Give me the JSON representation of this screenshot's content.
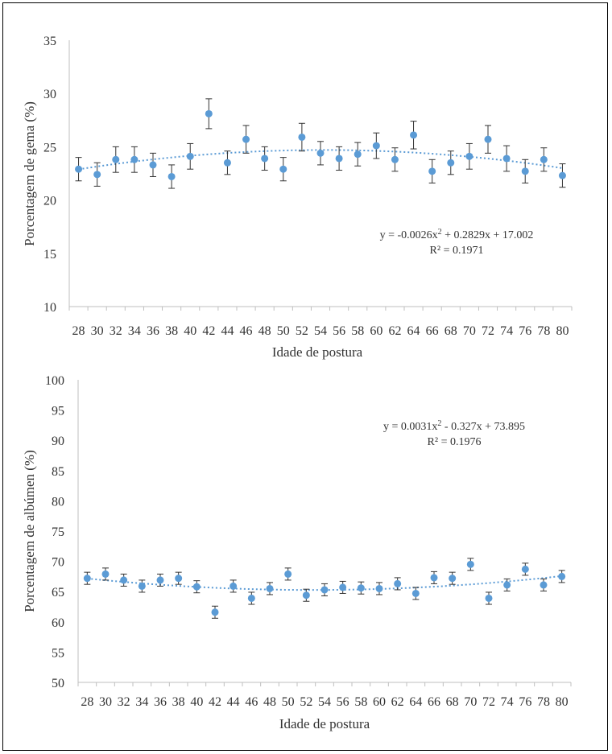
{
  "chart_data": [
    {
      "type": "scatter",
      "ylabel": "Porcentagem de gema (%)",
      "xlabel": "Idade de postura",
      "ylim": [
        10,
        35
      ],
      "yticks": [
        10,
        15,
        20,
        25,
        30,
        35
      ],
      "categories": [
        "28",
        "30",
        "32",
        "34",
        "36",
        "38",
        "40",
        "42",
        "44",
        "46",
        "48",
        "50",
        "52",
        "54",
        "56",
        "58",
        "60",
        "62",
        "64",
        "66",
        "68",
        "70",
        "72",
        "74",
        "76",
        "78",
        "80"
      ],
      "values": [
        22.9,
        22.4,
        23.8,
        23.8,
        23.3,
        22.2,
        24.1,
        28.1,
        23.5,
        25.7,
        23.9,
        22.9,
        25.9,
        24.4,
        23.9,
        24.3,
        25.1,
        23.8,
        26.1,
        22.7,
        23.5,
        24.1,
        25.7,
        23.9,
        22.7,
        23.8,
        22.3
      ],
      "errors": [
        1.1,
        1.1,
        1.2,
        1.2,
        1.1,
        1.1,
        1.2,
        1.4,
        1.1,
        1.3,
        1.1,
        1.1,
        1.3,
        1.1,
        1.1,
        1.1,
        1.2,
        1.1,
        1.3,
        1.1,
        1.1,
        1.2,
        1.3,
        1.2,
        1.1,
        1.1,
        1.1
      ],
      "trendline": {
        "type": "polynomial",
        "a": -0.0026,
        "b": 0.2829,
        "c": 17.002
      },
      "equation": "y = -0.0026x² + 0.2829x + 17.002",
      "r2": "R² = 0.1971",
      "grid": false,
      "legend": "none"
    },
    {
      "type": "scatter",
      "ylabel": "Porcentagem de albúmen (%)",
      "xlabel": "Idade de postura",
      "ylim": [
        50,
        100
      ],
      "yticks": [
        50,
        55,
        60,
        65,
        70,
        75,
        80,
        85,
        90,
        95,
        100
      ],
      "categories": [
        "28",
        "30",
        "32",
        "34",
        "36",
        "38",
        "40",
        "42",
        "44",
        "46",
        "48",
        "50",
        "52",
        "54",
        "56",
        "58",
        "60",
        "62",
        "64",
        "66",
        "68",
        "70",
        "72",
        "74",
        "76",
        "78",
        "80"
      ],
      "values": [
        67.2,
        67.9,
        66.9,
        65.9,
        66.9,
        67.2,
        65.8,
        61.6,
        65.9,
        63.9,
        65.5,
        67.9,
        64.4,
        65.3,
        65.7,
        65.6,
        65.5,
        66.3,
        64.7,
        67.3,
        67.2,
        69.5,
        63.9,
        66.1,
        68.7,
        66.1,
        67.5
      ],
      "errors": [
        1.0,
        1.0,
        1.0,
        1.0,
        1.0,
        1.0,
        1.0,
        1.0,
        1.0,
        1.0,
        1.0,
        1.0,
        1.0,
        1.0,
        1.0,
        1.0,
        1.0,
        1.0,
        1.0,
        1.0,
        1.0,
        1.0,
        1.0,
        1.0,
        1.0,
        1.0,
        1.0
      ],
      "trendline": {
        "type": "polynomial",
        "a": 0.0031,
        "b": -0.327,
        "c": 73.895
      },
      "equation": "y = 0.0031x² - 0.327x + 73.895",
      "r2": "R² = 0.1976",
      "grid": false,
      "legend": "none"
    }
  ],
  "colors": {
    "marker": "#5b9bd5",
    "trend": "#5b9bd5",
    "errorbar": "#333333",
    "axis": "#bfbfbf"
  }
}
